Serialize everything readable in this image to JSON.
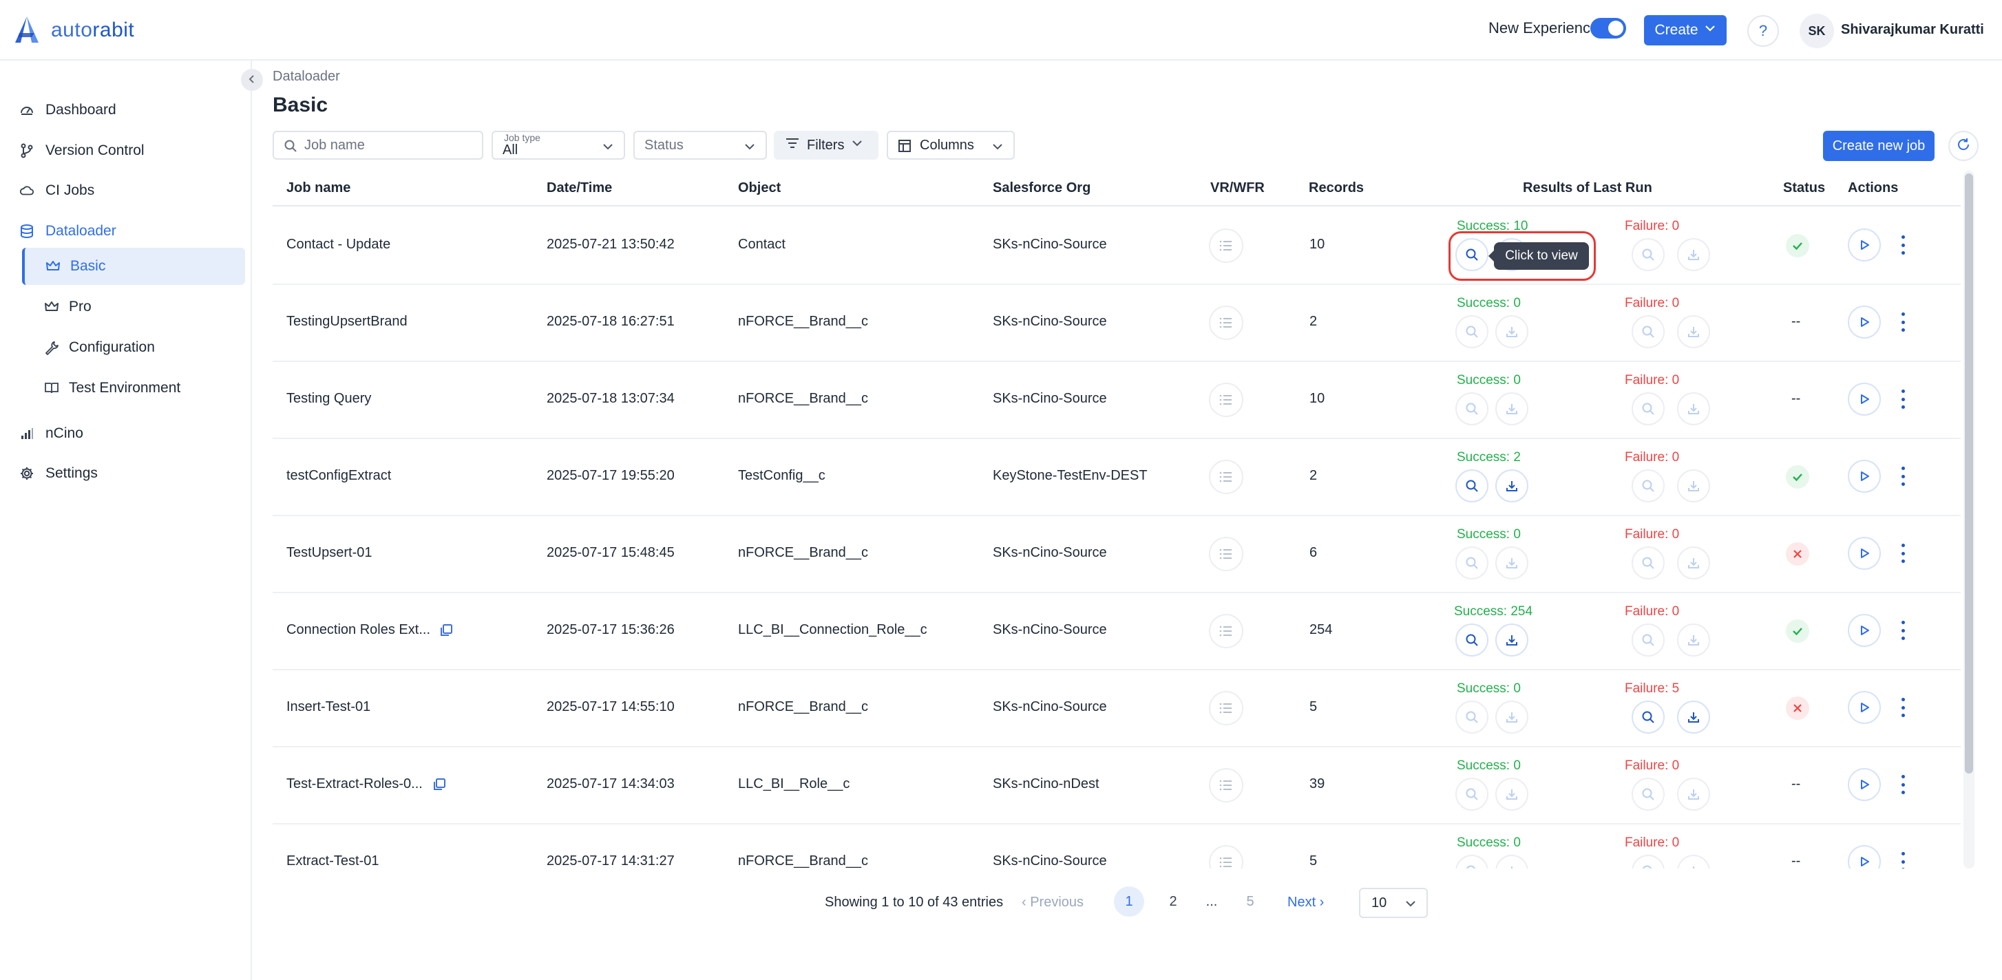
{
  "brand": {
    "name_part1": "auto",
    "name_part2": "rabit"
  },
  "header": {
    "new_experience_label": "New Experience",
    "new_experience_on": true,
    "create_label": "Create",
    "help_label": "?",
    "user_initials": "SK",
    "user_name": "Shivarajkumar Kuratti"
  },
  "sidebar": {
    "items": [
      {
        "label": "Dashboard",
        "icon": "dashboard-icon"
      },
      {
        "label": "Version Control",
        "icon": "branch-icon"
      },
      {
        "label": "CI Jobs",
        "icon": "cloud-icon"
      },
      {
        "label": "Dataloader",
        "icon": "database-icon"
      },
      {
        "label": "nCino",
        "icon": "bar-chart-icon"
      },
      {
        "label": "Settings",
        "icon": "gear-icon"
      }
    ],
    "sub_items": [
      {
        "label": "Basic",
        "icon": "crown-icon"
      },
      {
        "label": "Pro",
        "icon": "crown-icon"
      },
      {
        "label": "Configuration",
        "icon": "wrench-icon"
      },
      {
        "label": "Test Environment",
        "icon": "book-icon"
      }
    ]
  },
  "page": {
    "breadcrumb": "Dataloader",
    "title": "Basic"
  },
  "toolbar": {
    "search_placeholder": "Job name",
    "jobtype_label": "Job type",
    "jobtype_value": "All",
    "status_placeholder": "Status",
    "filters_label": "Filters",
    "columns_label": "Columns",
    "create_job_label": "Create new job"
  },
  "table": {
    "columns": {
      "job_name": "Job name",
      "datetime": "Date/Time",
      "object": "Object",
      "org": "Salesforce Org",
      "vrwfr": "VR/WFR",
      "records": "Records",
      "results": "Results of Last Run",
      "status": "Status",
      "actions": "Actions"
    },
    "rows": [
      {
        "job": "Contact - Update",
        "date": "2025-07-21 13:50:42",
        "object": "Contact",
        "org": "SKs-nCino-Source",
        "records": "10",
        "success": "Success: 10",
        "failure": "Failure: 0",
        "status": "success",
        "has_copy": false,
        "success_active": true,
        "failure_active": false
      },
      {
        "job": "TestingUpsertBrand",
        "date": "2025-07-18 16:27:51",
        "object": "nFORCE__Brand__c",
        "org": "SKs-nCino-Source",
        "records": "2",
        "success": "Success: 0",
        "failure": "Failure: 0",
        "status": "none",
        "has_copy": false,
        "success_active": false,
        "failure_active": false
      },
      {
        "job": "Testing Query",
        "date": "2025-07-18 13:07:34",
        "object": "nFORCE__Brand__c",
        "org": "SKs-nCino-Source",
        "records": "10",
        "success": "Success: 0",
        "failure": "Failure: 0",
        "status": "none",
        "has_copy": false,
        "success_active": false,
        "failure_active": false
      },
      {
        "job": "testConfigExtract",
        "date": "2025-07-17 19:55:20",
        "object": "TestConfig__c",
        "org": "KeyStone-TestEnv-DEST",
        "records": "2",
        "success": "Success: 2",
        "failure": "Failure: 0",
        "status": "success",
        "has_copy": false,
        "success_active": true,
        "failure_active": false
      },
      {
        "job": "TestUpsert-01",
        "date": "2025-07-17 15:48:45",
        "object": "nFORCE__Brand__c",
        "org": "SKs-nCino-Source",
        "records": "6",
        "success": "Success: 0",
        "failure": "Failure: 0",
        "status": "error",
        "has_copy": false,
        "success_active": false,
        "failure_active": false
      },
      {
        "job": "Connection Roles Ext...",
        "date": "2025-07-17 15:36:26",
        "object": "LLC_BI__Connection_Role__c",
        "org": "SKs-nCino-Source",
        "records": "254",
        "success": "Success: 254",
        "failure": "Failure: 0",
        "status": "success",
        "has_copy": true,
        "success_active": true,
        "failure_active": false
      },
      {
        "job": "Insert-Test-01",
        "date": "2025-07-17 14:55:10",
        "object": "nFORCE__Brand__c",
        "org": "SKs-nCino-Source",
        "records": "5",
        "success": "Success: 0",
        "failure": "Failure: 5",
        "status": "error",
        "has_copy": false,
        "success_active": false,
        "failure_active": true
      },
      {
        "job": "Test-Extract-Roles-0...",
        "date": "2025-07-17 14:34:03",
        "object": "LLC_BI__Role__c",
        "org": "SKs-nCino-nDest",
        "records": "39",
        "success": "Success: 0",
        "failure": "Failure: 0",
        "status": "none",
        "has_copy": true,
        "success_active": false,
        "failure_active": false
      },
      {
        "job": "Extract-Test-01",
        "date": "2025-07-17 14:31:27",
        "object": "nFORCE__Brand__c",
        "org": "SKs-nCino-Source",
        "records": "5",
        "success": "Success: 0",
        "failure": "Failure: 0",
        "status": "none",
        "has_copy": false,
        "success_active": false,
        "failure_active": false
      }
    ],
    "status_none_text": "--",
    "tooltip": "Click to view"
  },
  "pagination": {
    "showing": "Showing 1 to 10 of 43 entries",
    "previous": "Previous",
    "pages": [
      "1",
      "2",
      "...",
      "5"
    ],
    "current": "1",
    "next": "Next",
    "page_size": "10"
  },
  "colors": {
    "accent": "#2f6ee8",
    "success": "#22b14c",
    "failure": "#ef4444",
    "highlight": "#e53935"
  }
}
